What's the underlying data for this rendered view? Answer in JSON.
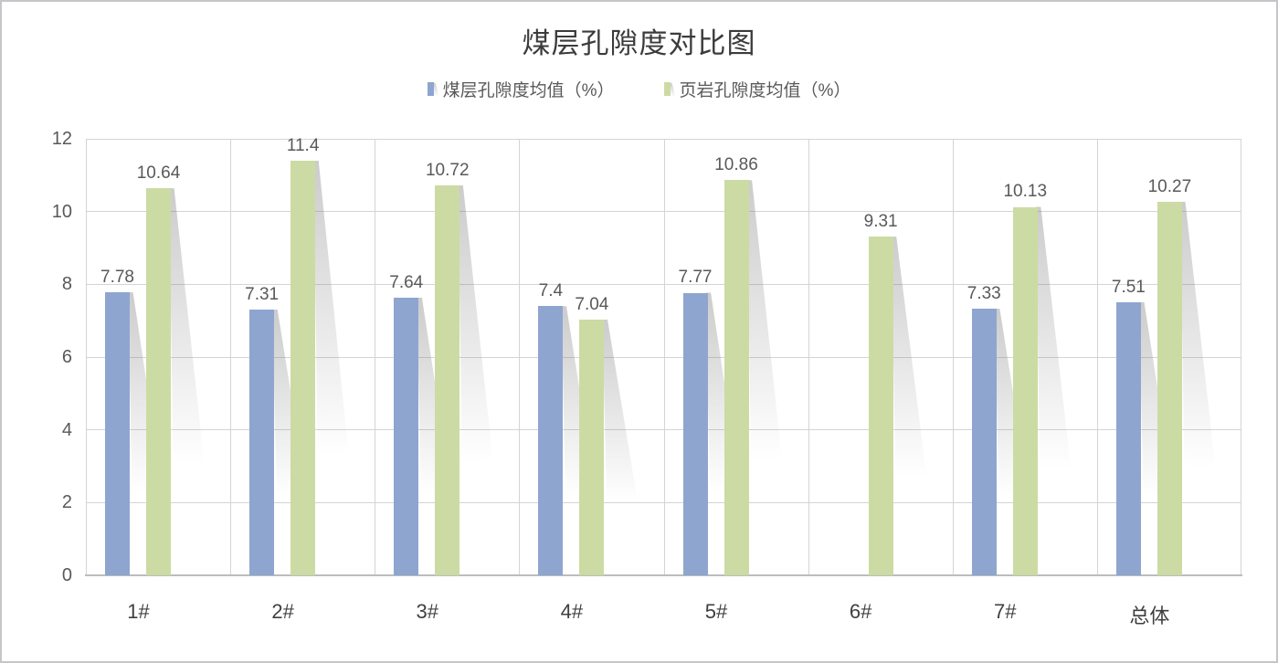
{
  "chart_data": {
    "type": "bar",
    "title": "煤层孔隙度对比图",
    "categories": [
      "1#",
      "2#",
      "3#",
      "4#",
      "5#",
      "6#",
      "7#",
      "总体"
    ],
    "series": [
      {
        "name": "煤层孔隙度均值（%）",
        "color": "#8ea5d0",
        "values": [
          7.78,
          7.31,
          7.64,
          7.4,
          7.77,
          null,
          7.33,
          7.51
        ]
      },
      {
        "name": "页岩孔隙度均值（%）",
        "color": "#ccdba3",
        "values": [
          10.64,
          11.4,
          10.72,
          7.04,
          10.86,
          9.31,
          10.13,
          10.27
        ]
      }
    ],
    "data_labels": [
      [
        "7.78",
        "7.31",
        "7.64",
        "7.4",
        "7.77",
        "",
        "7.33",
        "7.51"
      ],
      [
        "10.64",
        "11.4",
        "10.72",
        "7.04",
        "10.86",
        "9.31",
        "10.13",
        "10.27"
      ]
    ],
    "xlabel": "",
    "ylabel": "",
    "ylim": [
      0,
      12
    ],
    "ytick_step": 2,
    "ytick_labels": [
      "0",
      "2",
      "4",
      "6",
      "8",
      "10",
      "12"
    ],
    "grid": true,
    "legend_position": "top",
    "colors": {
      "title_text": "#3b3b3b",
      "axis_text": "#595959",
      "gridline": "#d4d4d4",
      "axis_line": "#bcbcbc",
      "frame_border": "#c4c6c9",
      "background": "#ffffff"
    }
  }
}
